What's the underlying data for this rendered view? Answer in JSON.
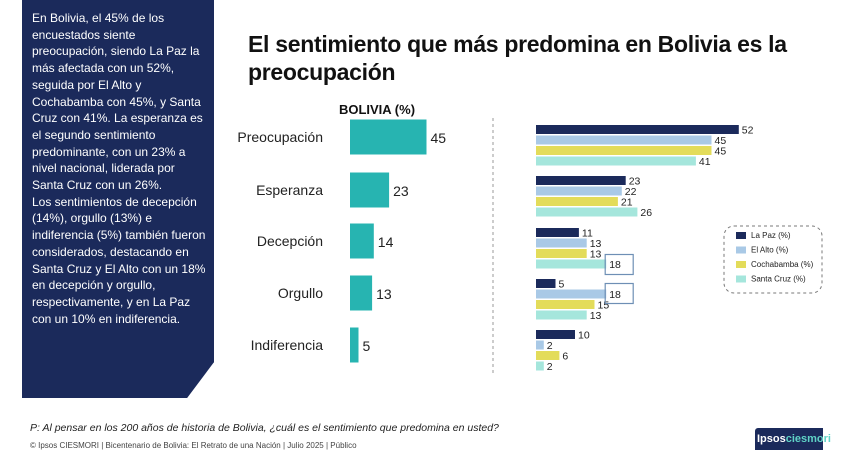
{
  "sidebar": {
    "paragraph1": "En Bolivia, el 45% de los encuestados siente preocupación, siendo La Paz la más afectada con un 52%, seguida por El Alto y Cochabamba con 45%, y Santa Cruz con 41%. La esperanza es el segundo sentimiento predominante, con un 23% a nivel nacional, liderada por Santa Cruz con un 26%.",
    "paragraph2": "Los sentimientos de decepción (14%), orgullo (13%) e indiferencia (5%) también fueron considerados, destacando en Santa Cruz y El Alto con un 18% en decepción y orgullo, respectivamente, y en La Paz con un 10% en indiferencia."
  },
  "title": "El sentimiento que más predomina en Bolivia es la preocupación",
  "question": "P: Al pensar en los 200 años de historia de Bolivia, ¿cuál es el sentimiento que predomina en usted?",
  "footer": "© Ipsos CIESMORI | Bicentenario de Bolivia: El Retrato de una Nación | Julio 2025 | Público",
  "logo": {
    "part1": "Ipsos",
    "part2": "ciesmori"
  },
  "colors": {
    "sidebar": "#1b2a5b",
    "bolivia_bar": "#27b4b1",
    "la_paz": "#1b2a5b",
    "el_alto": "#a9c9e6",
    "cochabamba": "#e3dc5a",
    "santa_cruz": "#a5e6dc",
    "highlight_box": "#6e8fb5"
  },
  "chart_data": [
    {
      "type": "bar",
      "orientation": "horizontal",
      "title": "BOLIVIA (%)",
      "categories": [
        "Preocupación",
        "Esperanza",
        "Decepción",
        "Orgullo",
        "Indiferencia"
      ],
      "values": [
        45,
        23,
        14,
        13,
        5
      ]
    },
    {
      "type": "bar",
      "orientation": "horizontal",
      "categories": [
        "Preocupación",
        "Esperanza",
        "Decepción",
        "Orgullo",
        "Indiferencia"
      ],
      "series": [
        {
          "name": "La Paz (%)",
          "values": [
            52,
            23,
            11,
            5,
            10
          ]
        },
        {
          "name": "El Alto (%)",
          "values": [
            45,
            22,
            13,
            18,
            2
          ]
        },
        {
          "name": "Cochabamba (%)",
          "values": [
            45,
            21,
            13,
            15,
            6
          ]
        },
        {
          "name": "Santa Cruz (%)",
          "values": [
            41,
            26,
            18,
            13,
            2
          ]
        }
      ],
      "legend_position": "right",
      "highlighted": [
        "Santa Cruz - Decepción",
        "El Alto - Orgullo"
      ]
    }
  ]
}
